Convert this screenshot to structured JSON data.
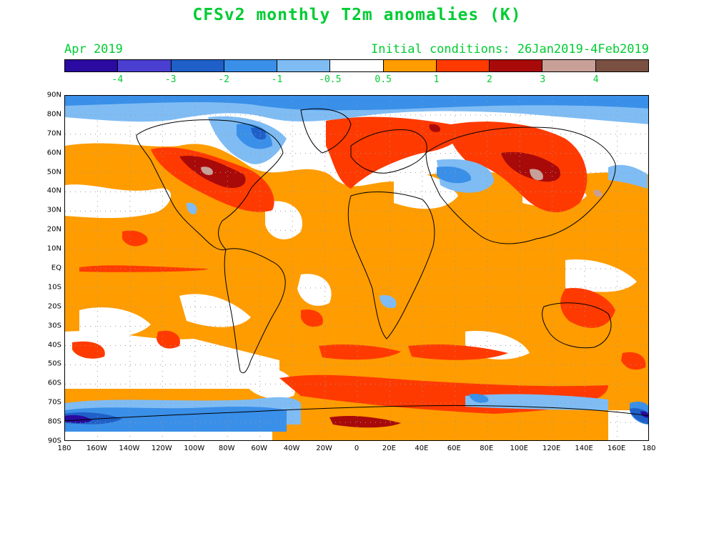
{
  "title": "CFSv2 monthly T2m anomalies (K)",
  "valid_month": "Apr 2019",
  "initial_conditions": "Initial conditions: 26Jan2019-4Feb2019",
  "colorbar": {
    "colors": [
      "#2a0aa0",
      "#4a3fd0",
      "#1f5fc8",
      "#3a8fe8",
      "#7fbcf4",
      "#ffffff",
      "#ff9c00",
      "#ff3a00",
      "#a80a0a",
      "#c8a098",
      "#7a5042"
    ],
    "labels": [
      "-4",
      "-3",
      "-2",
      "-1",
      "-0.5",
      "0.5",
      "1",
      "2",
      "3",
      "4"
    ]
  },
  "map": {
    "lat_labels": [
      "90N",
      "80N",
      "70N",
      "60N",
      "50N",
      "40N",
      "30N",
      "20N",
      "10N",
      "EQ",
      "10S",
      "20S",
      "30S",
      "40S",
      "50S",
      "60S",
      "70S",
      "80S",
      "90S"
    ],
    "lon_labels": [
      "180",
      "160W",
      "140W",
      "120W",
      "100W",
      "80W",
      "60W",
      "40W",
      "20W",
      "0",
      "20E",
      "40E",
      "60E",
      "80E",
      "100E",
      "120E",
      "140E",
      "160E",
      "180"
    ]
  }
}
